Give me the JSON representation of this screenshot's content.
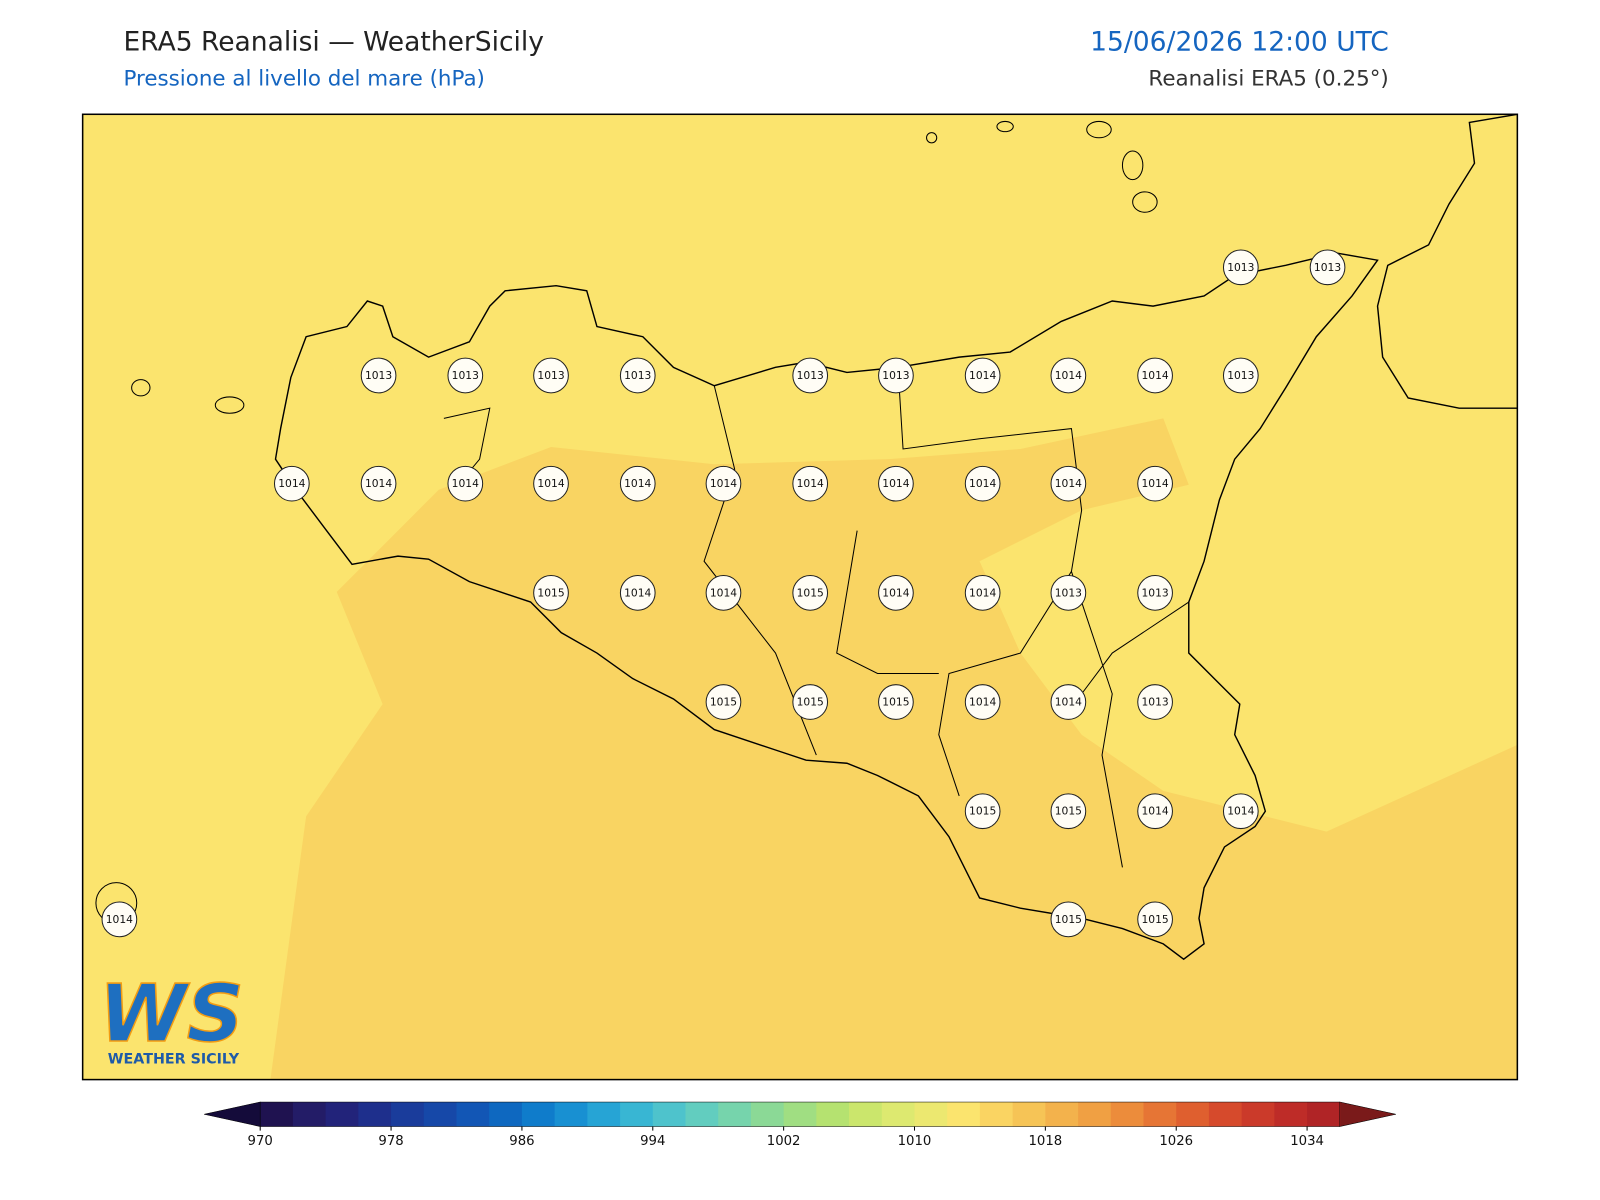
{
  "header": {
    "title": "ERA5 Reanalisi — WeatherSicily",
    "subtitle": "Pressione al livello del mare (hPa)",
    "datetime": "15/06/2026 12:00 UTC",
    "source": "Reanalisi ERA5 (0.25°)"
  },
  "stations": [
    1013,
    1013,
    1013,
    1013,
    1013,
    1013,
    1013,
    1013,
    1014,
    1014,
    1014,
    1013,
    1014,
    1014,
    1014,
    1014,
    1014,
    1014,
    1014,
    1014,
    1014,
    1014,
    1014,
    1015,
    1014,
    1014,
    1015,
    1014,
    1014,
    1013,
    1013,
    1015,
    1015,
    1015,
    1014,
    1014,
    1013,
    1015,
    1015,
    1014,
    1014,
    1014,
    1015,
    1015
  ],
  "colorbar": {
    "lim": [
      970,
      1036
    ],
    "ticks": [
      970,
      978,
      986,
      994,
      1002,
      1010,
      1018,
      1026,
      1034
    ],
    "under": "#140b3a",
    "over": "#7a1a1a",
    "colors": [
      "#1f1250",
      "#231c67",
      "#22237a",
      "#1e2f8c",
      "#1a3c9b",
      "#1648a8",
      "#1256b5",
      "#0e68c0",
      "#0f7ccb",
      "#1890d2",
      "#26a4d5",
      "#38b6d3",
      "#4ec3cc",
      "#62cdbf",
      "#76d4ac",
      "#8bd996",
      "#a0de82",
      "#b5e270",
      "#cbe66c",
      "#dde970",
      "#ece870",
      "#fbe46e",
      "#fad462",
      "#f6c456",
      "#f3b24c",
      "#f0a043",
      "#ec8c3b",
      "#e67535",
      "#df5f2f",
      "#d64a2c",
      "#cb3a2a",
      "#be2c28",
      "#b02426"
    ]
  },
  "logo": {
    "mark": "WS",
    "text": "WEATHER SICILY"
  }
}
